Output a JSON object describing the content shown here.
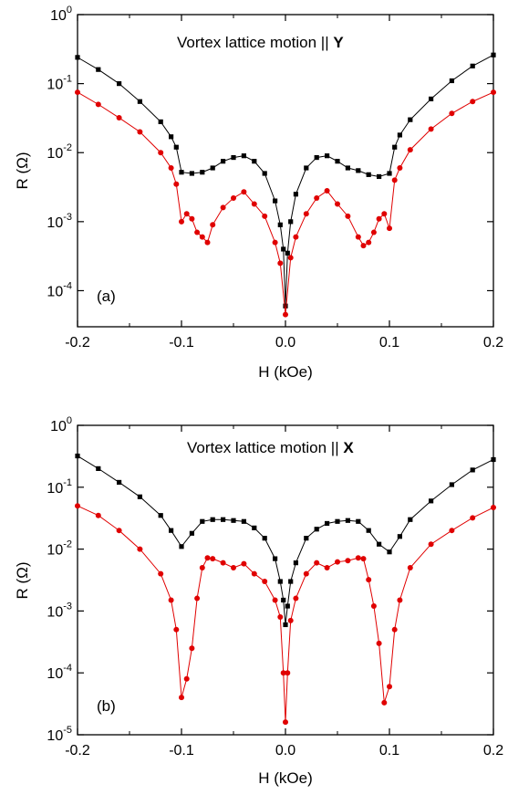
{
  "chart_data": [
    {
      "type": "scatter",
      "panel_label": "(a)",
      "annotation": "Vortex lattice motion || ",
      "annotation_bold": "Y",
      "xlabel": "H (kOe)",
      "ylabel": "R (Ω)",
      "xlim": [
        -0.2,
        0.2
      ],
      "ylim": [
        3e-05,
        1
      ],
      "yscale": "log",
      "x_ticks": [
        "-0.2",
        "-0.1",
        "0.0",
        "0.1",
        "0.2"
      ],
      "x_tick_values": [
        -0.2,
        -0.1,
        0.0,
        0.1,
        0.2
      ],
      "y_tick_exponents": [
        -4,
        -3,
        -2,
        -1,
        0
      ],
      "y_tick_base": "10",
      "series": [
        {
          "color": "#000000",
          "marker": "square",
          "x": [
            -0.2,
            -0.18,
            -0.16,
            -0.14,
            -0.12,
            -0.11,
            -0.105,
            -0.1,
            -0.09,
            -0.08,
            -0.07,
            -0.06,
            -0.05,
            -0.04,
            -0.03,
            -0.02,
            -0.01,
            -0.005,
            -0.002,
            0.0,
            0.002,
            0.005,
            0.01,
            0.02,
            0.03,
            0.04,
            0.05,
            0.06,
            0.07,
            0.08,
            0.09,
            0.1,
            0.105,
            0.11,
            0.12,
            0.14,
            0.16,
            0.18,
            0.2
          ],
          "y": [
            0.24,
            0.16,
            0.1,
            0.055,
            0.028,
            0.017,
            0.012,
            0.0052,
            0.005,
            0.0052,
            0.006,
            0.0075,
            0.0085,
            0.009,
            0.0075,
            0.005,
            0.002,
            0.0009,
            0.0004,
            6e-05,
            0.00035,
            0.001,
            0.0025,
            0.006,
            0.0085,
            0.009,
            0.0075,
            0.006,
            0.0055,
            0.0048,
            0.0045,
            0.005,
            0.012,
            0.018,
            0.03,
            0.06,
            0.11,
            0.18,
            0.26
          ]
        },
        {
          "color": "#e00000",
          "marker": "circle",
          "x": [
            -0.2,
            -0.18,
            -0.16,
            -0.14,
            -0.12,
            -0.11,
            -0.105,
            -0.1,
            -0.095,
            -0.09,
            -0.085,
            -0.08,
            -0.075,
            -0.07,
            -0.06,
            -0.05,
            -0.04,
            -0.03,
            -0.02,
            -0.01,
            -0.005,
            0.0,
            0.005,
            0.01,
            0.02,
            0.03,
            0.04,
            0.05,
            0.06,
            0.07,
            0.075,
            0.08,
            0.085,
            0.09,
            0.095,
            0.1,
            0.105,
            0.11,
            0.12,
            0.14,
            0.16,
            0.18,
            0.2
          ],
          "y": [
            0.075,
            0.05,
            0.032,
            0.02,
            0.01,
            0.006,
            0.0035,
            0.001,
            0.0013,
            0.0011,
            0.0007,
            0.0006,
            0.0005,
            0.0009,
            0.0016,
            0.0022,
            0.0027,
            0.0018,
            0.0012,
            0.0005,
            0.00025,
            4.5e-05,
            0.0003,
            0.0006,
            0.0013,
            0.0022,
            0.0028,
            0.0018,
            0.0012,
            0.0006,
            0.00045,
            0.0005,
            0.0007,
            0.0011,
            0.0013,
            0.0008,
            0.004,
            0.006,
            0.011,
            0.022,
            0.037,
            0.055,
            0.075
          ]
        }
      ]
    },
    {
      "type": "scatter",
      "panel_label": "(b)",
      "annotation": "Vortex lattice motion || ",
      "annotation_bold": "X",
      "xlabel": "H (kOe)",
      "ylabel": "R (Ω)",
      "xlim": [
        -0.2,
        0.2
      ],
      "ylim": [
        1e-05,
        1
      ],
      "yscale": "log",
      "x_ticks": [
        "-0.2",
        "-0.1",
        "0.0",
        "0.1",
        "0.2"
      ],
      "x_tick_values": [
        -0.2,
        -0.1,
        0.0,
        0.1,
        0.2
      ],
      "y_tick_exponents": [
        -5,
        -4,
        -3,
        -2,
        -1,
        0
      ],
      "y_tick_base": "10",
      "series": [
        {
          "color": "#000000",
          "marker": "square",
          "x": [
            -0.2,
            -0.18,
            -0.16,
            -0.14,
            -0.12,
            -0.11,
            -0.1,
            -0.09,
            -0.08,
            -0.07,
            -0.06,
            -0.05,
            -0.04,
            -0.03,
            -0.02,
            -0.01,
            -0.005,
            -0.002,
            0.0,
            0.002,
            0.005,
            0.01,
            0.02,
            0.03,
            0.04,
            0.05,
            0.06,
            0.07,
            0.08,
            0.09,
            0.1,
            0.11,
            0.12,
            0.14,
            0.16,
            0.18,
            0.2
          ],
          "y": [
            0.32,
            0.2,
            0.12,
            0.07,
            0.035,
            0.02,
            0.011,
            0.018,
            0.028,
            0.03,
            0.03,
            0.029,
            0.028,
            0.022,
            0.015,
            0.007,
            0.003,
            0.0015,
            0.0006,
            0.0012,
            0.003,
            0.006,
            0.015,
            0.021,
            0.026,
            0.028,
            0.029,
            0.028,
            0.02,
            0.012,
            0.009,
            0.016,
            0.03,
            0.06,
            0.11,
            0.19,
            0.28
          ]
        },
        {
          "color": "#e00000",
          "marker": "circle",
          "x": [
            -0.2,
            -0.18,
            -0.16,
            -0.14,
            -0.12,
            -0.11,
            -0.105,
            -0.1,
            -0.095,
            -0.09,
            -0.085,
            -0.08,
            -0.075,
            -0.07,
            -0.06,
            -0.05,
            -0.04,
            -0.03,
            -0.02,
            -0.01,
            -0.005,
            -0.002,
            0.0,
            0.002,
            0.005,
            0.01,
            0.02,
            0.03,
            0.04,
            0.05,
            0.06,
            0.07,
            0.075,
            0.08,
            0.085,
            0.09,
            0.095,
            0.1,
            0.105,
            0.11,
            0.12,
            0.14,
            0.16,
            0.18,
            0.2
          ],
          "y": [
            0.05,
            0.035,
            0.02,
            0.01,
            0.004,
            0.0015,
            0.0005,
            4e-05,
            8e-05,
            0.00025,
            0.0016,
            0.005,
            0.0072,
            0.007,
            0.006,
            0.005,
            0.0058,
            0.004,
            0.003,
            0.0015,
            0.0008,
            0.0001,
            1.6e-05,
            0.0001,
            0.0007,
            0.0016,
            0.004,
            0.006,
            0.005,
            0.0062,
            0.0065,
            0.0072,
            0.007,
            0.0032,
            0.0012,
            0.0003,
            3.3e-05,
            6e-05,
            0.0005,
            0.0015,
            0.005,
            0.012,
            0.02,
            0.032,
            0.047
          ]
        }
      ]
    }
  ]
}
